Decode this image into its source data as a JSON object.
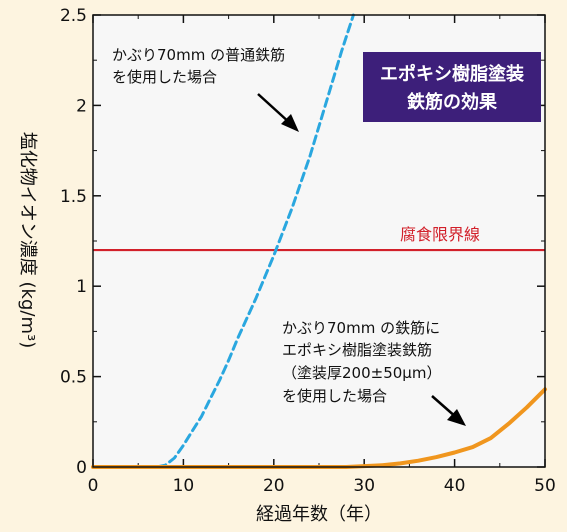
{
  "chart_data": {
    "type": "line",
    "xlabel": "経過年数（年）",
    "ylabel": "塩化物イオン濃度 (kg/m³)",
    "xlim": [
      0,
      50
    ],
    "ylim": [
      0,
      2.5
    ],
    "x_ticks": [
      "0",
      "10",
      "20",
      "30",
      "40",
      "50"
    ],
    "y_ticks": [
      "0",
      "0.5",
      "1",
      "1.5",
      "2",
      "2.5"
    ],
    "grid": false,
    "series": [
      {
        "name": "かぶり70mm の普通鉄筋を使用した場合",
        "style": "dashed",
        "color": "#2aa7df",
        "points": [
          [
            0,
            0
          ],
          [
            7,
            0
          ],
          [
            8,
            0.01
          ],
          [
            9,
            0.05
          ],
          [
            10,
            0.12
          ],
          [
            11,
            0.2
          ],
          [
            12,
            0.28
          ],
          [
            13,
            0.38
          ],
          [
            14,
            0.48
          ],
          [
            15,
            0.59
          ],
          [
            16,
            0.71
          ],
          [
            18,
            0.93
          ],
          [
            20,
            1.17
          ],
          [
            22,
            1.43
          ],
          [
            24,
            1.72
          ],
          [
            26,
            2.05
          ],
          [
            27.5,
            2.3
          ],
          [
            28.8,
            2.5
          ]
        ]
      },
      {
        "name": "かぶり70mm の鉄筋にエポキシ樹脂塗装鉄筋（塗装厚200±50μm）を使用した場合",
        "style": "solid",
        "color": "#f0961e",
        "points": [
          [
            0,
            0
          ],
          [
            28,
            0
          ],
          [
            30,
            0.005
          ],
          [
            32,
            0.01
          ],
          [
            34,
            0.02
          ],
          [
            36,
            0.035
          ],
          [
            38,
            0.055
          ],
          [
            40,
            0.08
          ],
          [
            42,
            0.11
          ],
          [
            44,
            0.16
          ],
          [
            46,
            0.24
          ],
          [
            48,
            0.33
          ],
          [
            50,
            0.43
          ]
        ]
      }
    ],
    "reference_lines": [
      {
        "label": "腐食限界線",
        "y": 1.2,
        "color": "#d2202a"
      }
    ],
    "annotations": {
      "plain_steel": [
        "かぶり70mm の普通鉄筋",
        "を使用した場合"
      ],
      "epoxy_steel": [
        "かぶり70mm の鉄筋に",
        "エポキシ樹脂塗装鉄筋",
        "（塗装厚200±50μm）",
        "を使用した場合"
      ]
    },
    "badge": {
      "lines": [
        "エポキシ樹脂塗装",
        "鉄筋の効果"
      ],
      "bg": "#3d1f7a"
    }
  }
}
